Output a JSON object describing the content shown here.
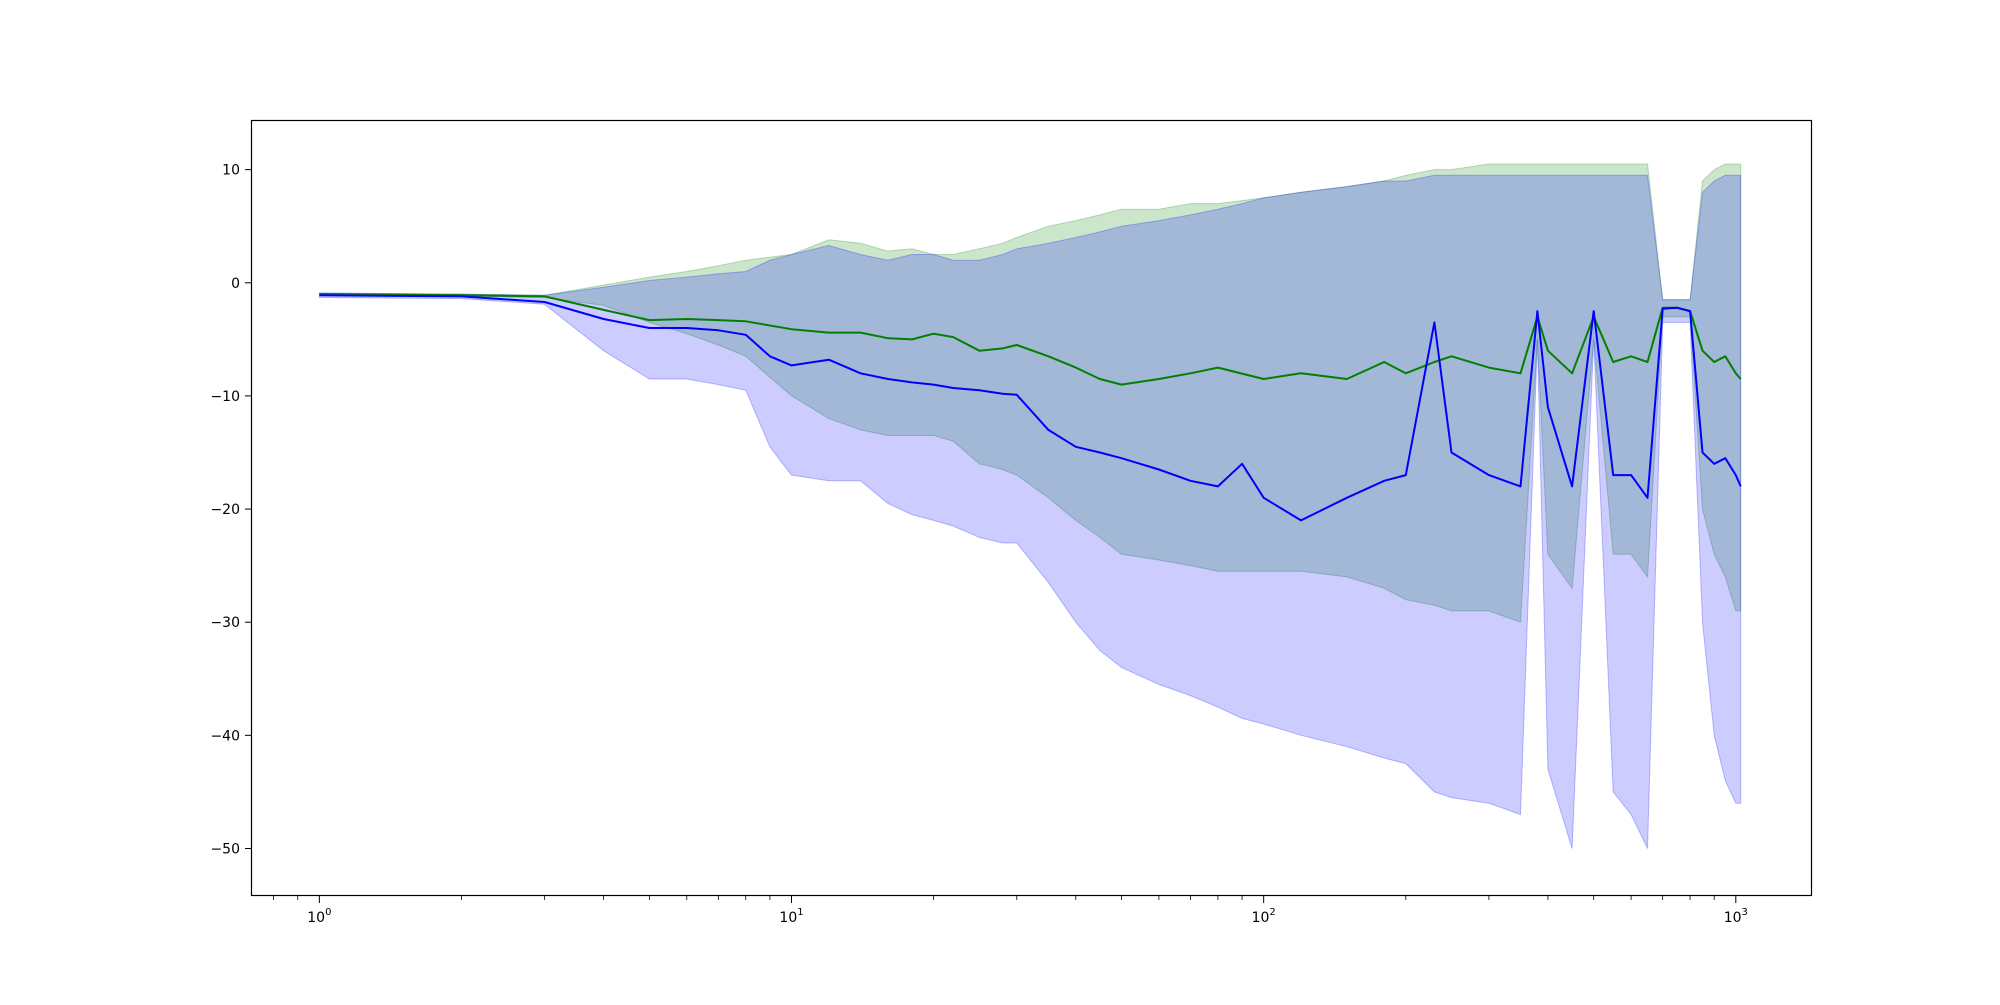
{
  "chart_data": {
    "type": "line",
    "title": "",
    "xlabel": "",
    "ylabel": "",
    "xscale": "log",
    "xlim": [
      0.72,
      1450
    ],
    "ylim": [
      -54.2,
      14.3
    ],
    "grid": false,
    "x_ticks": [
      {
        "value": 1,
        "base": "10",
        "exp": "0"
      },
      {
        "value": 10,
        "base": "10",
        "exp": "1"
      },
      {
        "value": 100,
        "base": "10",
        "exp": "2"
      },
      {
        "value": 1000,
        "base": "10",
        "exp": "3"
      }
    ],
    "y_ticks": [
      {
        "value": 10,
        "label": "10"
      },
      {
        "value": 0,
        "label": "0"
      },
      {
        "value": -10,
        "label": "−10"
      },
      {
        "value": -20,
        "label": "−20"
      },
      {
        "value": -30,
        "label": "−30"
      },
      {
        "value": -40,
        "label": "−40"
      },
      {
        "value": -50,
        "label": "−50"
      }
    ],
    "series": [
      {
        "color": "#008000",
        "band_color": "#008000",
        "band_opacity": 0.2,
        "x": [
          1,
          2,
          3,
          4,
          5,
          6,
          7,
          8,
          10,
          12,
          14,
          16,
          18,
          20,
          22,
          25,
          28,
          30,
          35,
          40,
          45,
          50,
          60,
          70,
          80,
          100,
          120,
          150,
          180,
          200,
          230,
          250,
          300,
          350,
          380,
          400,
          450,
          500,
          550,
          600,
          650,
          700,
          750,
          800,
          850,
          900,
          950,
          1000,
          1024
        ],
        "y": [
          -1.0,
          -1.1,
          -1.2,
          -2.4,
          -3.3,
          -3.2,
          -3.3,
          -3.4,
          -4.1,
          -4.4,
          -4.4,
          -4.9,
          -5.0,
          -4.5,
          -4.8,
          -6.0,
          -5.8,
          -5.5,
          -6.5,
          -7.5,
          -8.5,
          -9.0,
          -8.5,
          -8.0,
          -7.5,
          -8.5,
          -8.0,
          -8.5,
          -7.0,
          -8.0,
          -7.0,
          -6.5,
          -7.5,
          -8.0,
          -3.0,
          -6.0,
          -8.0,
          -3.0,
          -7.0,
          -6.5,
          -7.0,
          -2.2,
          -2.2,
          -2.5,
          -6.0,
          -7.0,
          -6.5,
          -8.0,
          -8.5
        ],
        "upper": [
          -0.9,
          -1.0,
          -1.1,
          -0.2,
          0.5,
          1.0,
          1.5,
          2.0,
          2.5,
          3.8,
          3.5,
          2.8,
          3.0,
          2.5,
          2.5,
          3.0,
          3.5,
          4.0,
          5.0,
          5.5,
          6.0,
          6.5,
          6.5,
          7.0,
          7.0,
          7.5,
          8.0,
          8.5,
          9.0,
          9.5,
          10.0,
          10.0,
          10.5,
          10.5,
          10.5,
          10.5,
          10.5,
          10.5,
          10.5,
          10.5,
          10.5,
          -1.5,
          -1.5,
          -1.5,
          9.0,
          10.0,
          10.5,
          10.5,
          10.5
        ],
        "lower": [
          -1.1,
          -1.2,
          -1.3,
          -2.0,
          -3.5,
          -4.5,
          -5.5,
          -6.5,
          -10.0,
          -12.0,
          -13.0,
          -13.5,
          -13.5,
          -13.5,
          -14.0,
          -16.0,
          -16.5,
          -17.0,
          -19.0,
          -21.0,
          -22.5,
          -24.0,
          -24.5,
          -25.0,
          -25.5,
          -25.5,
          -25.5,
          -26.0,
          -27.0,
          -28.0,
          -28.5,
          -29.0,
          -29.0,
          -30.0,
          -5.0,
          -24.0,
          -27.0,
          -5.0,
          -24.0,
          -24.0,
          -26.0,
          -3.0,
          -3.0,
          -3.0,
          -20.0,
          -24.0,
          -26.0,
          -29.0,
          -29.0
        ]
      },
      {
        "color": "#0000ff",
        "band_color": "#0000ff",
        "band_opacity": 0.2,
        "x": [
          1,
          2,
          3,
          4,
          5,
          6,
          7,
          8,
          9,
          10,
          12,
          14,
          16,
          18,
          20,
          22,
          25,
          28,
          30,
          35,
          40,
          45,
          50,
          60,
          70,
          80,
          90,
          100,
          120,
          150,
          180,
          200,
          230,
          250,
          300,
          350,
          380,
          400,
          450,
          500,
          550,
          600,
          650,
          700,
          750,
          800,
          850,
          900,
          950,
          1000,
          1024
        ],
        "y": [
          -1.1,
          -1.2,
          -1.7,
          -3.2,
          -4.0,
          -4.0,
          -4.2,
          -4.6,
          -6.5,
          -7.3,
          -6.8,
          -8.0,
          -8.5,
          -8.8,
          -9.0,
          -9.3,
          -9.5,
          -9.8,
          -9.9,
          -13.0,
          -14.5,
          -15.0,
          -15.5,
          -16.5,
          -17.5,
          -18.0,
          -16.0,
          -19.0,
          -21.0,
          -19.0,
          -17.5,
          -17.0,
          -3.5,
          -15.0,
          -17.0,
          -18.0,
          -2.5,
          -11.0,
          -18.0,
          -2.5,
          -17.0,
          -17.0,
          -19.0,
          -2.3,
          -2.2,
          -2.5,
          -15.0,
          -16.0,
          -15.5,
          -17.0,
          -18.0
        ],
        "upper": [
          -0.9,
          -1.0,
          -1.1,
          -0.4,
          0.2,
          0.5,
          0.8,
          1.0,
          2.0,
          2.5,
          3.3,
          2.5,
          2.0,
          2.5,
          2.5,
          2.0,
          2.0,
          2.5,
          3.0,
          3.5,
          4.0,
          4.5,
          5.0,
          5.5,
          6.0,
          6.5,
          7.0,
          7.5,
          8.0,
          8.5,
          9.0,
          9.0,
          9.5,
          9.5,
          9.5,
          9.5,
          9.5,
          9.5,
          9.5,
          9.5,
          9.5,
          9.5,
          9.5,
          -1.5,
          -1.5,
          -1.5,
          8.0,
          9.0,
          9.5,
          9.5,
          9.5
        ],
        "lower": [
          -1.3,
          -1.4,
          -1.9,
          -6.0,
          -8.5,
          -8.5,
          -9.0,
          -9.5,
          -14.5,
          -17.0,
          -17.5,
          -17.5,
          -19.5,
          -20.5,
          -21.0,
          -21.5,
          -22.5,
          -23.0,
          -23.0,
          -26.5,
          -30.0,
          -32.5,
          -34.0,
          -35.5,
          -36.5,
          -37.5,
          -38.5,
          -39.0,
          -40.0,
          -41.0,
          -42.0,
          -42.5,
          -45.0,
          -45.5,
          -46.0,
          -47.0,
          -5.0,
          -43.0,
          -50.0,
          -5.0,
          -45.0,
          -47.0,
          -50.0,
          -3.5,
          -3.5,
          -3.5,
          -30.0,
          -40.0,
          -44.0,
          -46.0,
          -46.0
        ]
      }
    ]
  }
}
